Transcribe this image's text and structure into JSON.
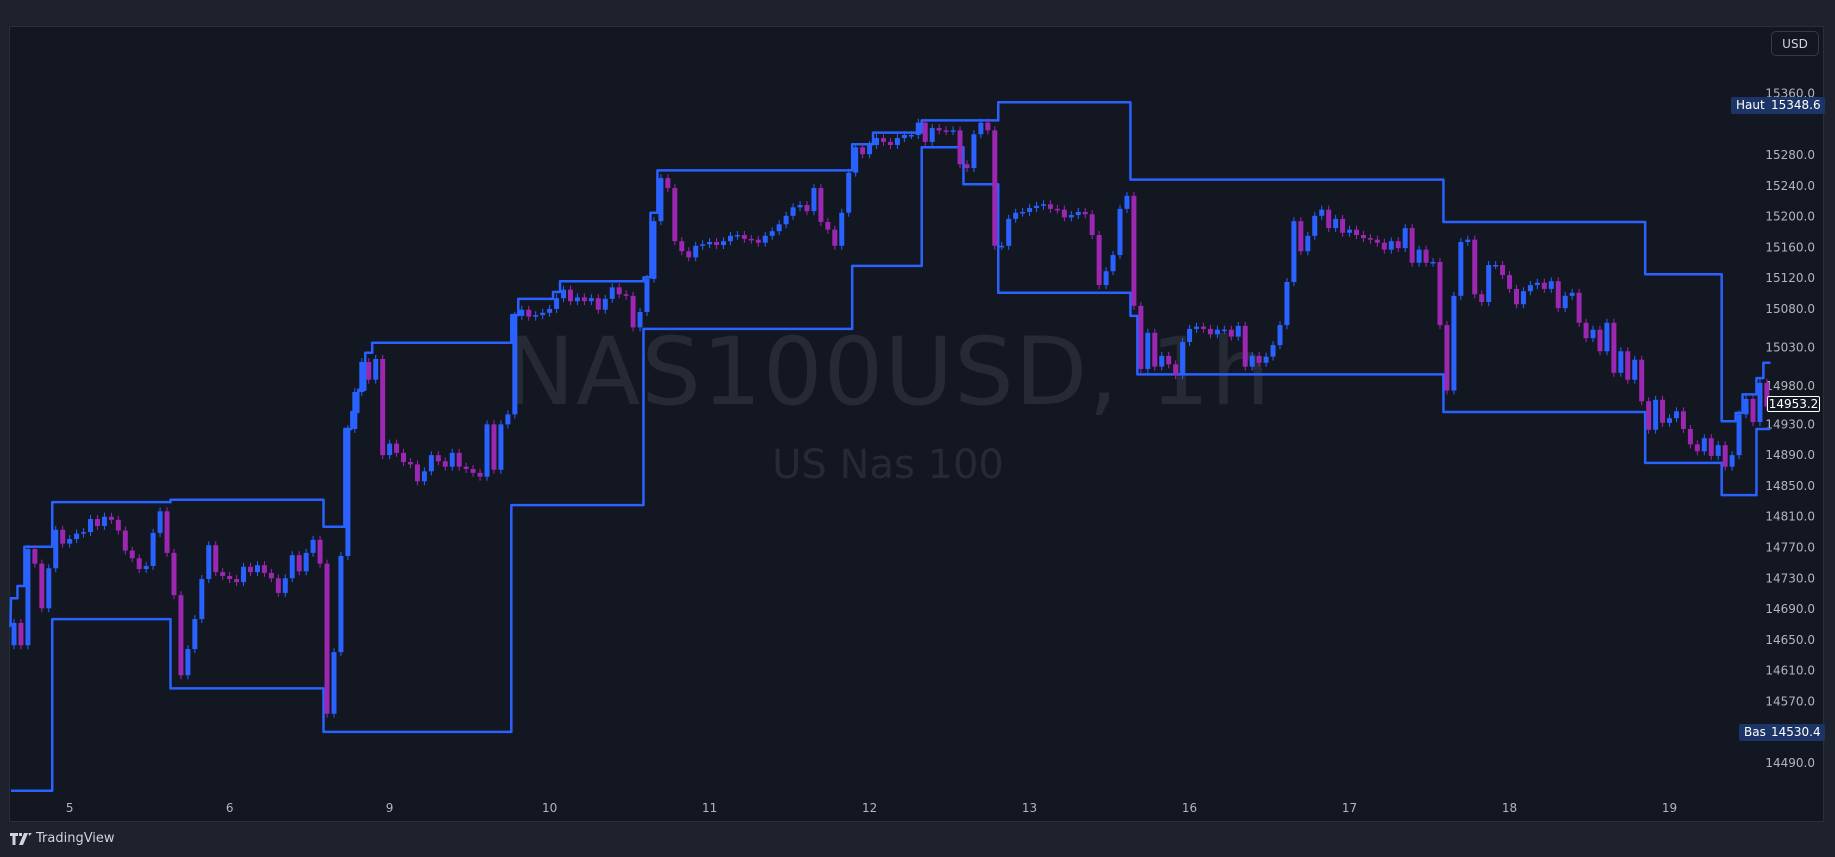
{
  "watermark": {
    "symbol_interval": "NAS100USD, 1h",
    "description": "US Nas 100"
  },
  "currency_button": "USD",
  "high_tag": {
    "label": "Haut",
    "value": "15348.6"
  },
  "low_tag": {
    "label": "Bas",
    "value": "14530.4"
  },
  "last_price": "14953.2",
  "brand": "TradingView",
  "colors": {
    "up": "#2962ff",
    "down": "#9c27b0",
    "channel": "#2962ff",
    "background": "#131722",
    "frame": "#1e222d",
    "axis_text": "#b2b5be"
  },
  "chart_data": {
    "type": "candlestick",
    "symbol": "NAS100USD",
    "interval": "1h",
    "ylim": [
      14420,
      15420
    ],
    "y_ticks": [
      "15360.0",
      "15280.0",
      "15240.0",
      "15200.0",
      "15160.0",
      "15120.0",
      "15080.0",
      "15030.0",
      "14980.0",
      "14930.0",
      "14890.0",
      "14850.0",
      "14810.0",
      "14770.0",
      "14730.0",
      "14690.0",
      "14650.0",
      "14610.0",
      "14570.0",
      "14490.0"
    ],
    "x_ticks": [
      {
        "label": "5",
        "bar": 9
      },
      {
        "label": "6",
        "bar": 32
      },
      {
        "label": "9",
        "bar": 55
      },
      {
        "label": "10",
        "bar": 78
      },
      {
        "label": "11",
        "bar": 101
      },
      {
        "label": "12",
        "bar": 124
      },
      {
        "label": "13",
        "bar": 147
      },
      {
        "label": "16",
        "bar": 170
      },
      {
        "label": "17",
        "bar": 193
      },
      {
        "label": "18",
        "bar": 216
      },
      {
        "label": "19",
        "bar": 239
      }
    ],
    "first_open": 14643,
    "closes": [
      14672,
      14643,
      14768,
      14749,
      14691,
      14743,
      14793,
      14775,
      14781,
      14788,
      14790,
      14807,
      14798,
      14810,
      14806,
      14792,
      14766,
      14756,
      14742,
      14746,
      14789,
      14817,
      14763,
      14708,
      14604,
      14638,
      14677,
      14729,
      14773,
      14738,
      14733,
      14729,
      14725,
      14745,
      14738,
      14747,
      14737,
      14730,
      14711,
      14730,
      14760,
      14739,
      14763,
      14780,
      14749,
      14554,
      14634,
      14759,
      14924,
      14972,
      15011,
      14988,
      15015,
      14890,
      14905,
      14893,
      14881,
      14878,
      14856,
      14869,
      14890,
      14882,
      14875,
      14893,
      14875,
      14872,
      14867,
      14862,
      14930,
      14871,
      14930,
      14943,
      15071,
      15079,
      15070,
      15072,
      15075,
      15080,
      15094,
      15105,
      15090,
      15095,
      15090,
      15094,
      15079,
      15093,
      15108,
      15099,
      15097,
      15056,
      15076,
      15119,
      15194,
      15250,
      15237,
      15168,
      15155,
      15147,
      15162,
      15164,
      15167,
      15163,
      15168,
      15175,
      15176,
      15171,
      15170,
      15166,
      15175,
      15181,
      15190,
      15201,
      15212,
      15215,
      15207,
      15237,
      15193,
      15183,
      15162,
      15205,
      15257,
      15290,
      15281,
      15293,
      15302,
      15297,
      15293,
      15302,
      15306,
      15306,
      15322,
      15297,
      15315,
      15312,
      15311,
      15312,
      15268,
      15263,
      15307,
      15322,
      15312,
      15162,
      15162,
      15197,
      15205,
      15206,
      15211,
      15214,
      15216,
      15210,
      15209,
      15199,
      15202,
      15206,
      15203,
      15176,
      15111,
      15129,
      15150,
      15210,
      15227,
      15084,
      15002,
      15049,
      15005,
      15019,
      15008,
      14994,
      15037,
      15054,
      15057,
      15054,
      15047,
      15053,
      15053,
      15044,
      15058,
      15005,
      15019,
      15010,
      15018,
      15033,
      15059,
      15115,
      15194,
      15155,
      15175,
      15201,
      15209,
      15185,
      15197,
      15179,
      15183,
      15176,
      15172,
      15170,
      15166,
      15157,
      15168,
      15159,
      15185,
      15140,
      15157,
      15140,
      15141,
      15059,
      14974,
      15097,
      15167,
      15170,
      15099,
      15089,
      15137,
      15137,
      15124,
      15106,
      15086,
      15103,
      15111,
      15114,
      15106,
      15116,
      15081,
      15097,
      15101,
      15062,
      15042,
      15053,
      15025,
      15062,
      14997,
      15025,
      14988,
      15014,
      14960,
      14923,
      14962,
      14932,
      14938,
      14947,
      14924,
      14904,
      14895,
      14912,
      14889,
      14903,
      14875,
      14890,
      14943,
      14963,
      14933,
      14984,
      14953.2
    ],
    "channel_upper_steps": [
      [
        0,
        14668
      ],
      [
        1,
        14704
      ],
      [
        2,
        14720
      ],
      [
        3,
        14771
      ],
      [
        7,
        14829
      ],
      [
        24,
        14832
      ],
      [
        46,
        14797
      ],
      [
        49,
        14924
      ],
      [
        50,
        14946
      ],
      [
        51,
        14975
      ],
      [
        52,
        15023
      ],
      [
        53,
        15036
      ],
      [
        73,
        15072
      ],
      [
        74,
        15093
      ],
      [
        79,
        15102
      ],
      [
        80,
        15116
      ],
      [
        92,
        15121
      ],
      [
        93,
        15205
      ],
      [
        94,
        15260
      ],
      [
        122,
        15294
      ],
      [
        125,
        15309
      ],
      [
        132,
        15325
      ],
      [
        143,
        15348.6
      ],
      [
        162,
        15248
      ],
      [
        207,
        15193
      ],
      [
        236,
        15125
      ],
      [
        247,
        14934
      ],
      [
        249,
        14945
      ],
      [
        250,
        14969
      ],
      [
        252,
        14990
      ],
      [
        253,
        15010
      ]
    ],
    "channel_lower_steps": [
      [
        0,
        14454
      ],
      [
        7,
        14677
      ],
      [
        24,
        14587
      ],
      [
        46,
        14530.4
      ],
      [
        73,
        14825
      ],
      [
        92,
        15054
      ],
      [
        122,
        15136
      ],
      [
        132,
        15290
      ],
      [
        138,
        15242
      ],
      [
        143,
        15101
      ],
      [
        162,
        15071
      ],
      [
        163,
        14995
      ],
      [
        207,
        14946
      ],
      [
        236,
        14880
      ],
      [
        247,
        14838
      ],
      [
        252,
        14924
      ]
    ]
  }
}
